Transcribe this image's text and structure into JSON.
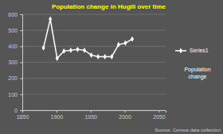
{
  "chart_data": {
    "type": "line",
    "title": "Population change in Hugill over time",
    "x": [
      1881,
      1891,
      1901,
      1911,
      1921,
      1931,
      1941,
      1951,
      1961,
      1971,
      1981,
      1991,
      2001,
      2011
    ],
    "series": [
      {
        "name": "Series1",
        "color": "#ffffff",
        "marker": "diamond",
        "values": [
          390,
          570,
          325,
          370,
          375,
          380,
          375,
          345,
          335,
          335,
          335,
          410,
          420,
          445
        ]
      }
    ],
    "xlim": [
      1850,
      2060
    ],
    "ylim": [
      0,
      600
    ],
    "xticks": [
      1850,
      1900,
      1950,
      2000,
      2050
    ],
    "yticks": [
      0,
      100,
      200,
      300,
      400,
      500,
      600
    ],
    "grid": true,
    "legend": "right",
    "annotations": [
      "Population\nchange",
      "Source: Census data collection"
    ]
  }
}
